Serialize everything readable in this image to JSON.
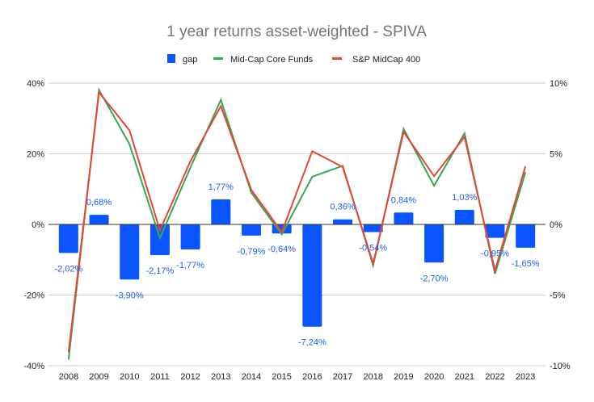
{
  "chart_data": {
    "type": "bar+line",
    "title": "1 year returns asset-weighted - SPIVA",
    "categories": [
      "2008",
      "2009",
      "2010",
      "2011",
      "2012",
      "2013",
      "2014",
      "2015",
      "2016",
      "2017",
      "2018",
      "2019",
      "2020",
      "2021",
      "2022",
      "2023"
    ],
    "series": [
      {
        "name": "gap",
        "type": "bar",
        "axis": "right",
        "color": "#0a55ff",
        "values": [
          -2.02,
          0.68,
          -3.9,
          -2.17,
          -1.77,
          1.77,
          -0.79,
          -0.64,
          -7.24,
          0.36,
          -0.54,
          0.84,
          -2.7,
          1.03,
          -0.95,
          -1.65
        ],
        "labels": [
          "-2,02%",
          "0,68%",
          "-3,90%",
          "-2,17%",
          "-1,77%",
          "1,77%",
          "-0,79%",
          "-0,64%",
          "-7,24%",
          "0,36%",
          "-0,54%",
          "0,84%",
          "-2,70%",
          "1,03%",
          "-0,95%",
          "-1,65%"
        ]
      },
      {
        "name": "Mid-Cap Core Funds",
        "type": "line",
        "axis": "left",
        "color": "#34a853",
        "values": [
          -38.25,
          38.06,
          22.74,
          -3.9,
          16.11,
          35.27,
          8.98,
          -2.82,
          13.5,
          16.6,
          -11.62,
          27.04,
          10.96,
          25.79,
          -14.01,
          14.79
        ]
      },
      {
        "name": "S&P MidCap 400",
        "type": "line",
        "axis": "left",
        "color": "#ea4335",
        "values": [
          -36.23,
          37.38,
          26.64,
          -1.73,
          17.88,
          33.5,
          9.77,
          -2.18,
          20.74,
          16.24,
          -11.08,
          26.2,
          13.66,
          24.76,
          -13.06,
          16.44
        ]
      }
    ],
    "left_axis": {
      "range": [
        -40,
        40
      ],
      "ticks": [
        40,
        20,
        0,
        -20,
        -40
      ],
      "tick_labels": [
        "40%",
        "20%",
        "0%",
        "-20%",
        "-40%"
      ]
    },
    "right_axis": {
      "range": [
        -10,
        10
      ],
      "ticks": [
        10,
        5,
        0,
        -5,
        -10
      ],
      "tick_labels": [
        "10%",
        "5%",
        "0%",
        "-5%",
        "-10%"
      ]
    },
    "legend": {
      "placement": "top",
      "entries": [
        "gap",
        "Mid-Cap Core Funds",
        "S&P MidCap 400"
      ]
    },
    "grid": true
  }
}
